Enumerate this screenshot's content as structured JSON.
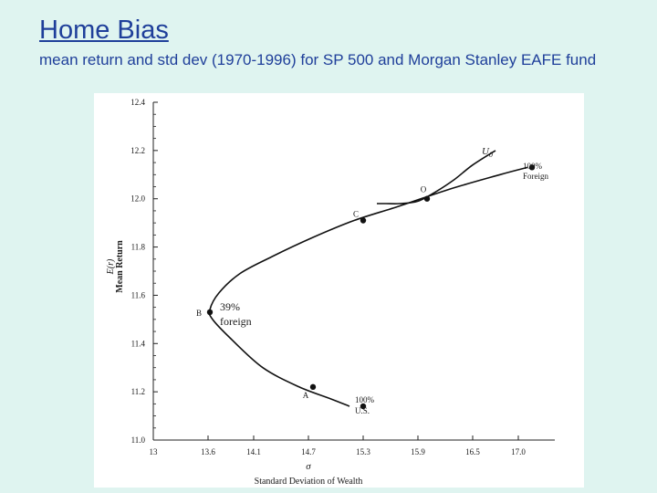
{
  "slide": {
    "title": "Home Bias",
    "subtitle": "mean return and std dev (1970-1996) for SP 500 and Morgan Stanley EAFE fund"
  },
  "chart_data": {
    "type": "line",
    "title": "",
    "xlabel": "Standard Deviation of Wealth",
    "x_symbol": "σ",
    "ylabel": "Mean Return",
    "y_symbol": "E(r)",
    "xlim": [
      13.0,
      17.4
    ],
    "ylim": [
      11.0,
      12.4
    ],
    "x_ticks": [
      "13",
      "13.6",
      "14.1",
      "14.7",
      "15.3",
      "15.9",
      "16.5",
      "17.0"
    ],
    "x_tick_values": [
      13.0,
      13.6,
      14.1,
      14.7,
      15.3,
      15.9,
      16.5,
      17.0
    ],
    "y_ticks": [
      "11.0",
      "11.2",
      "11.4",
      "11.6",
      "11.8",
      "12.0",
      "12.2",
      "12.4"
    ],
    "y_tick_values": [
      11.0,
      11.2,
      11.4,
      11.6,
      11.8,
      12.0,
      12.2,
      12.4
    ],
    "series": [
      {
        "name": "",
        "kind": "frontier",
        "x": [
          15.15,
          14.95,
          14.6,
          14.2,
          13.85,
          13.65,
          13.62,
          13.72,
          13.95,
          14.3,
          14.75,
          15.2,
          15.7,
          16.25,
          16.8,
          17.1
        ],
        "y": [
          11.14,
          11.17,
          11.22,
          11.3,
          11.42,
          11.5,
          11.54,
          11.61,
          11.69,
          11.76,
          11.84,
          11.91,
          11.97,
          12.04,
          12.1,
          12.13
        ]
      },
      {
        "name": "U0",
        "kind": "indifference",
        "x": [
          15.45,
          15.55,
          15.7,
          15.9,
          16.1,
          16.3,
          16.5,
          16.75
        ],
        "y": [
          11.98,
          11.98,
          11.98,
          11.99,
          12.03,
          12.08,
          12.14,
          12.2
        ]
      }
    ],
    "points": [
      {
        "label": "A",
        "x": 14.75,
        "y": 11.22
      },
      {
        "label": "B",
        "x": 13.62,
        "y": 11.53
      },
      {
        "label": "C",
        "x": 15.3,
        "y": 11.91
      },
      {
        "label": "O",
        "x": 16.0,
        "y": 12.0
      },
      {
        "label": "",
        "x": 15.3,
        "y": 11.14
      },
      {
        "label": "",
        "x": 17.15,
        "y": 12.13
      }
    ],
    "annotations": [
      {
        "id": "us",
        "lines": [
          "100%",
          "U.S."
        ]
      },
      {
        "id": "foreign",
        "lines": [
          "100%",
          "Foreign"
        ]
      },
      {
        "id": "b_note",
        "lines": [
          "39%",
          "foreign"
        ]
      }
    ],
    "curve_label": "U",
    "curve_label_sub": "0"
  }
}
